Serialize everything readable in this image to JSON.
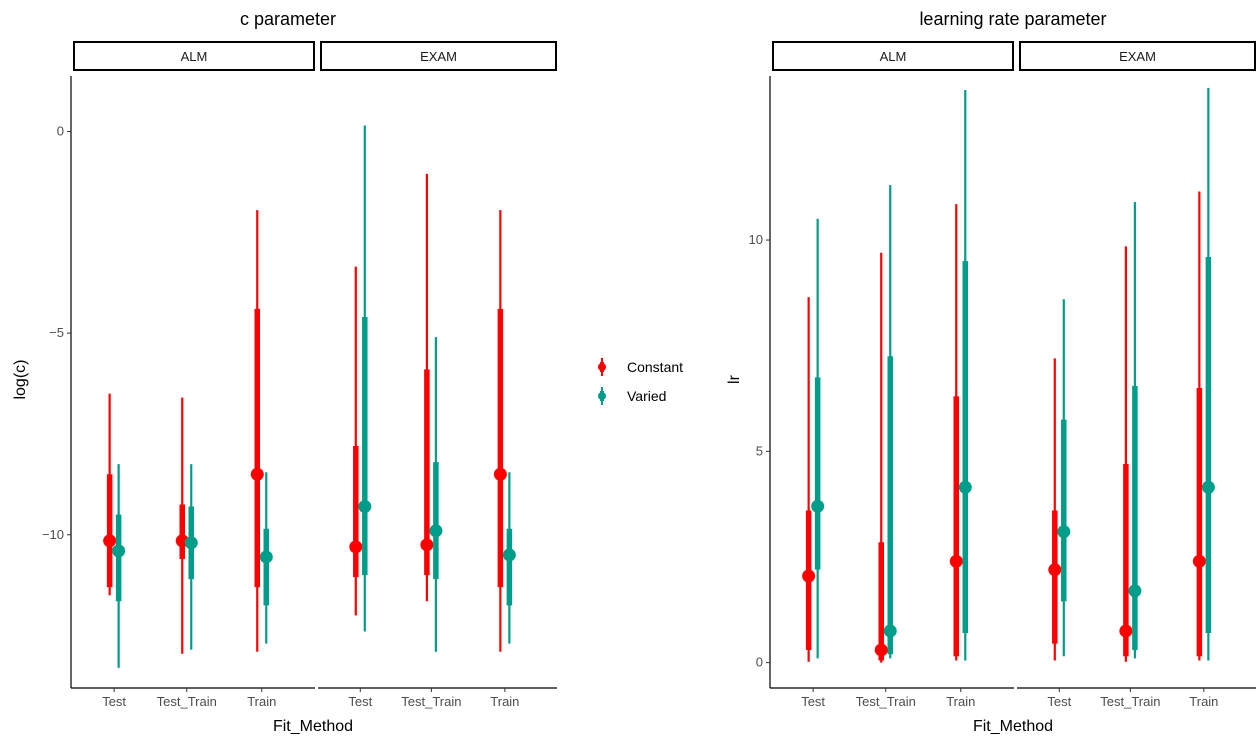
{
  "chart_data": [
    {
      "type": "pointrange",
      "title": "c parameter",
      "xlabel": "Fit_Method",
      "ylabel": "log(c)",
      "ylim": [
        -13.8,
        1.5
      ],
      "yticks": [
        0,
        -5,
        -10
      ],
      "facets": [
        "ALM",
        "EXAM"
      ],
      "categories": [
        "Test",
        "Test_Train",
        "Train"
      ],
      "series": [
        {
          "name": "Constant",
          "color": "#ff0000",
          "points": [
            {
              "facet": "ALM",
              "x": "Test",
              "y": -10.15,
              "inner": [
                -11.3,
                -8.5
              ],
              "outer": [
                -11.5,
                -6.5
              ]
            },
            {
              "facet": "ALM",
              "x": "Test_Train",
              "y": -10.15,
              "inner": [
                -10.6,
                -9.25
              ],
              "outer": [
                -12.95,
                -6.6
              ]
            },
            {
              "facet": "ALM",
              "x": "Train",
              "y": -8.5,
              "inner": [
                -11.3,
                -4.4
              ],
              "outer": [
                -12.9,
                -1.95
              ]
            },
            {
              "facet": "EXAM",
              "x": "Test",
              "y": -10.3,
              "inner": [
                -11.05,
                -7.8
              ],
              "outer": [
                -12.0,
                -3.35
              ]
            },
            {
              "facet": "EXAM",
              "x": "Test_Train",
              "y": -10.25,
              "inner": [
                -11.0,
                -5.9
              ],
              "outer": [
                -11.65,
                -1.05
              ]
            },
            {
              "facet": "EXAM",
              "x": "Train",
              "y": -8.5,
              "inner": [
                -11.3,
                -4.4
              ],
              "outer": [
                -12.9,
                -1.95
              ]
            }
          ]
        },
        {
          "name": "Varied",
          "color": "#009e8a",
          "points": [
            {
              "facet": "ALM",
              "x": "Test",
              "y": -10.4,
              "inner": [
                -11.65,
                -9.5
              ],
              "outer": [
                -13.3,
                -8.25
              ]
            },
            {
              "facet": "ALM",
              "x": "Test_Train",
              "y": -10.2,
              "inner": [
                -11.1,
                -9.3
              ],
              "outer": [
                -12.85,
                -8.25
              ]
            },
            {
              "facet": "ALM",
              "x": "Train",
              "y": -10.55,
              "inner": [
                -11.75,
                -9.85
              ],
              "outer": [
                -12.7,
                -8.45
              ]
            },
            {
              "facet": "EXAM",
              "x": "Test",
              "y": -9.3,
              "inner": [
                -11.0,
                -4.6
              ],
              "outer": [
                -12.4,
                0.15
              ]
            },
            {
              "facet": "EXAM",
              "x": "Test_Train",
              "y": -9.9,
              "inner": [
                -11.1,
                -8.2
              ],
              "outer": [
                -12.9,
                -5.1
              ]
            },
            {
              "facet": "EXAM",
              "x": "Train",
              "y": -10.5,
              "inner": [
                -11.75,
                -9.85
              ],
              "outer": [
                -12.7,
                -8.45
              ]
            }
          ]
        }
      ]
    },
    {
      "type": "pointrange",
      "title": "learning rate parameter",
      "xlabel": "Fit_Method",
      "ylabel": "lr",
      "ylim": [
        -0.6,
        14.0
      ],
      "yticks": [
        0,
        5,
        10
      ],
      "facets": [
        "ALM",
        "EXAM"
      ],
      "categories": [
        "Test",
        "Test_Train",
        "Train"
      ],
      "series": [
        {
          "name": "Constant",
          "color": "#ff0000",
          "points": [
            {
              "facet": "ALM",
              "x": "Test",
              "y": 2.05,
              "inner": [
                0.3,
                3.6
              ],
              "outer": [
                0.02,
                8.65
              ]
            },
            {
              "facet": "ALM",
              "x": "Test_Train",
              "y": 0.3,
              "inner": [
                0.05,
                2.85
              ],
              "outer": [
                0.0,
                9.7
              ]
            },
            {
              "facet": "ALM",
              "x": "Train",
              "y": 2.4,
              "inner": [
                0.15,
                6.3
              ],
              "outer": [
                0.05,
                10.85
              ]
            },
            {
              "facet": "EXAM",
              "x": "Test",
              "y": 2.2,
              "inner": [
                0.45,
                3.6
              ],
              "outer": [
                0.05,
                7.2
              ]
            },
            {
              "facet": "EXAM",
              "x": "Test_Train",
              "y": 0.75,
              "inner": [
                0.15,
                4.7
              ],
              "outer": [
                0.02,
                9.85
              ]
            },
            {
              "facet": "EXAM",
              "x": "Train",
              "y": 2.4,
              "inner": [
                0.15,
                6.5
              ],
              "outer": [
                0.05,
                11.15
              ]
            }
          ]
        },
        {
          "name": "Varied",
          "color": "#009e8a",
          "points": [
            {
              "facet": "ALM",
              "x": "Test",
              "y": 3.7,
              "inner": [
                2.2,
                6.75
              ],
              "outer": [
                0.1,
                10.5
              ]
            },
            {
              "facet": "ALM",
              "x": "Test_Train",
              "y": 0.75,
              "inner": [
                0.2,
                7.25
              ],
              "outer": [
                0.1,
                11.3
              ]
            },
            {
              "facet": "ALM",
              "x": "Train",
              "y": 4.15,
              "inner": [
                0.7,
                9.5
              ],
              "outer": [
                0.05,
                13.55
              ]
            },
            {
              "facet": "EXAM",
              "x": "Test",
              "y": 3.1,
              "inner": [
                1.45,
                5.75
              ],
              "outer": [
                0.15,
                8.6
              ]
            },
            {
              "facet": "EXAM",
              "x": "Test_Train",
              "y": 1.7,
              "inner": [
                0.3,
                6.55
              ],
              "outer": [
                0.1,
                10.9
              ]
            },
            {
              "facet": "EXAM",
              "x": "Train",
              "y": 4.15,
              "inner": [
                0.7,
                9.6
              ],
              "outer": [
                0.05,
                13.6
              ]
            }
          ]
        }
      ]
    }
  ],
  "legend": {
    "items": [
      {
        "label": "Constant",
        "color": "#ff0000"
      },
      {
        "label": "Varied",
        "color": "#009e8a"
      }
    ]
  }
}
